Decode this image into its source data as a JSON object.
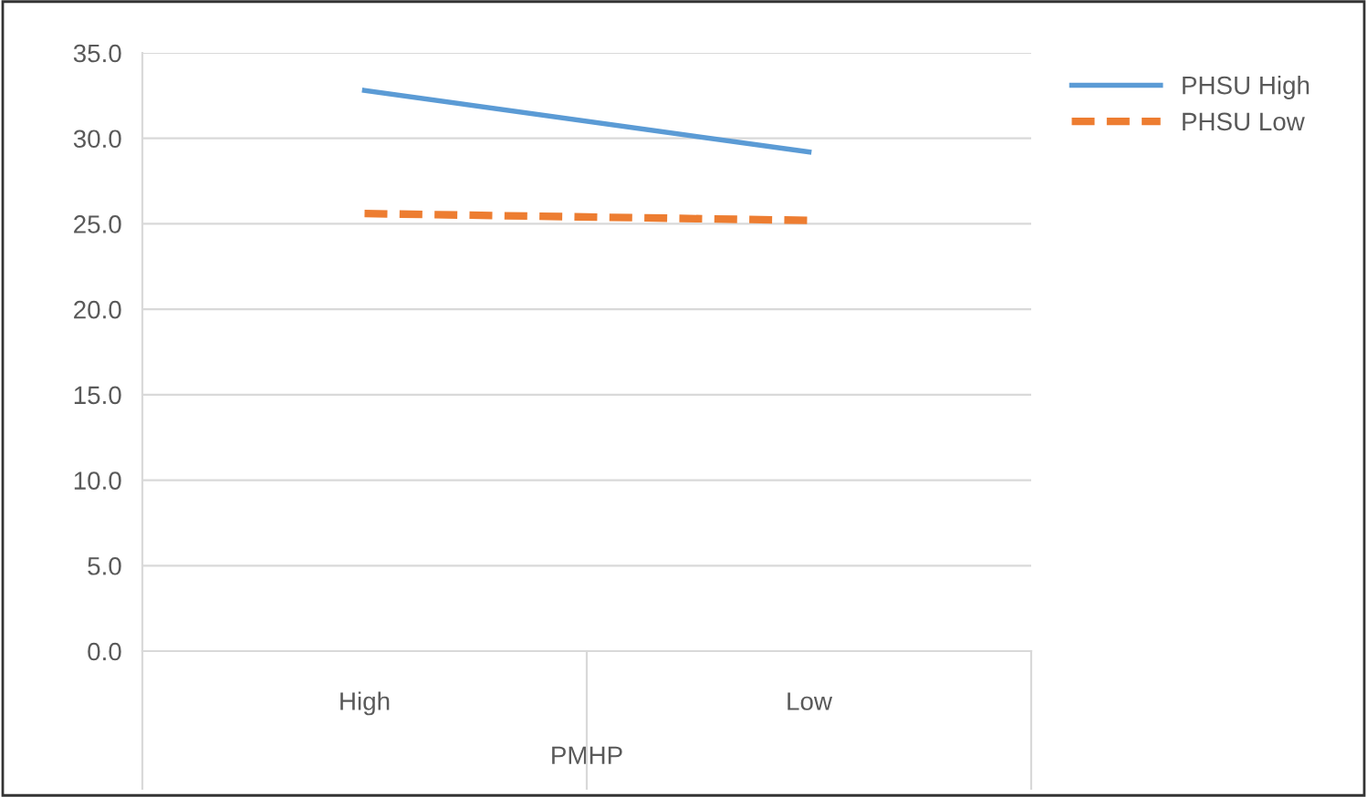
{
  "chart_data": {
    "type": "line",
    "xlabel": "PMHP",
    "categories": [
      "High",
      "Low"
    ],
    "series": [
      {
        "name": "PHSU High",
        "color": "#5b9bd5",
        "values": [
          32.8,
          29.2
        ],
        "line_style": "solid"
      },
      {
        "name": "PHSU Low",
        "color": "#ed7d31",
        "values": [
          25.6,
          25.2
        ],
        "line_style": "dashed"
      }
    ],
    "ylim": [
      0,
      35
    ],
    "yticks": [
      {
        "value": 0,
        "label": "0.0"
      },
      {
        "value": 5,
        "label": "5.0"
      },
      {
        "value": 10,
        "label": "10.0"
      },
      {
        "value": 15,
        "label": "15.0"
      },
      {
        "value": 20,
        "label": "20.0"
      },
      {
        "value": 25,
        "label": "25.0"
      },
      {
        "value": 30,
        "label": "30.0"
      },
      {
        "value": 35,
        "label": "35.0"
      }
    ],
    "grid": "y",
    "legend": "right",
    "marker": "none"
  }
}
